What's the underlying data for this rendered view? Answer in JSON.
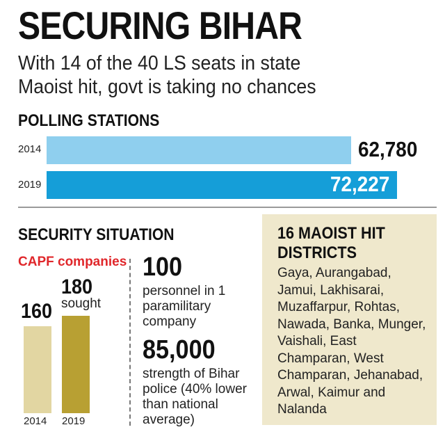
{
  "headline": "SECURING BIHAR",
  "subheadline": {
    "line1": "With 14 of the 40 LS seats in state",
    "line2": "Maoist hit, govt is taking no chances"
  },
  "polling": {
    "title": "POLLING STATIONS",
    "colors": {
      "2014": "#8fcfee",
      "2019": "#159ed8"
    }
  },
  "security": {
    "title": "SECURITY SITUATION",
    "capf_label": "CAPF companies",
    "sought_label": "sought",
    "colors": {
      "2014": "#e2d6a2",
      "2019": "#b8a033"
    },
    "stat1_value": "100",
    "stat1_text": "personnel in 1 paramilitary company",
    "stat2_value": "85,000",
    "stat2_text": "strength of Bihar police (40% lower than national average)"
  },
  "districts": {
    "title": "16 MAOIST HIT DISTRICTS",
    "list": "Gaya, Aurangabad, Jamui, Lakhisarai, Muzaffarpur, Rohtas, Nawada, Banka, Munger, Vaishali, East Champaran, West Champaran, Jehanabad, Arwal, Kaimur and Nalanda"
  },
  "chart_data": [
    {
      "type": "bar",
      "orientation": "horizontal",
      "title": "POLLING STATIONS",
      "categories": [
        "2014",
        "2019"
      ],
      "values": [
        62780,
        72227
      ],
      "value_labels": [
        "62,780",
        "72,227"
      ]
    },
    {
      "type": "bar",
      "orientation": "vertical",
      "title": "CAPF companies",
      "categories": [
        "2014",
        "2019"
      ],
      "values": [
        160,
        180
      ],
      "value_labels": [
        "160",
        "180"
      ],
      "annotations": [
        "",
        "sought"
      ]
    }
  ]
}
